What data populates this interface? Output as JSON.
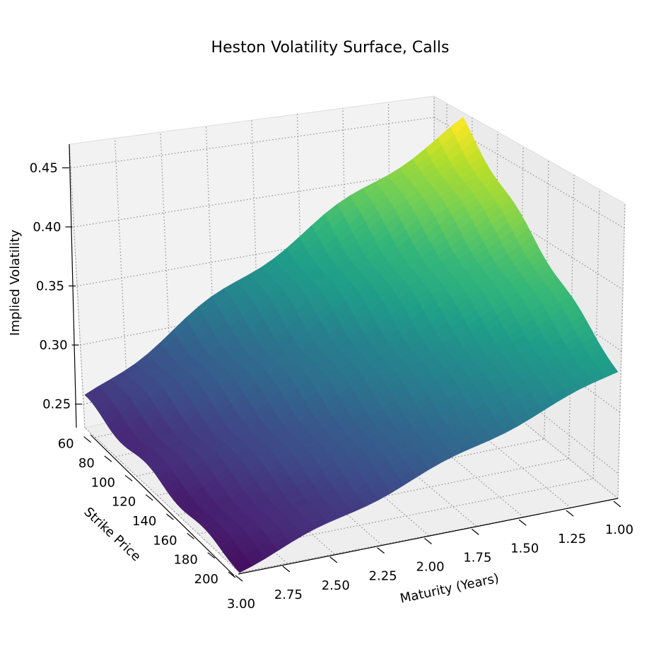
{
  "chart_data": {
    "type": "surface3d",
    "title": "Heston Volatility Surface, Calls",
    "xlabel": "Maturity (Years)",
    "ylabel": "Strike Price",
    "zlabel": "Implied Volatility",
    "x_ticks": [
      "1.00",
      "1.25",
      "1.50",
      "1.75",
      "2.00",
      "2.25",
      "2.50",
      "2.75",
      "3.00"
    ],
    "y_ticks": [
      "60",
      "80",
      "100",
      "120",
      "140",
      "160",
      "180",
      "200"
    ],
    "z_ticks": [
      "0.25",
      "0.30",
      "0.35",
      "0.40",
      "0.45"
    ],
    "xlim": [
      1.0,
      3.0
    ],
    "ylim": [
      50,
      200
    ],
    "zlim": [
      0.23,
      0.47
    ],
    "colormap": "viridis",
    "grid": true,
    "surface_corners": [
      {
        "maturity": 1.0,
        "strike": 50,
        "implied_volatility": 0.465
      },
      {
        "maturity": 1.0,
        "strike": 200,
        "implied_volatility": 0.355
      },
      {
        "maturity": 3.0,
        "strike": 50,
        "implied_volatility": 0.255
      },
      {
        "maturity": 3.0,
        "strike": 200,
        "implied_volatility": 0.232
      }
    ],
    "colors": {
      "pane": "#f2f2f2",
      "pane_side": "#ebebeb",
      "grid": "#8c8c8c",
      "axis": "#000000"
    }
  }
}
